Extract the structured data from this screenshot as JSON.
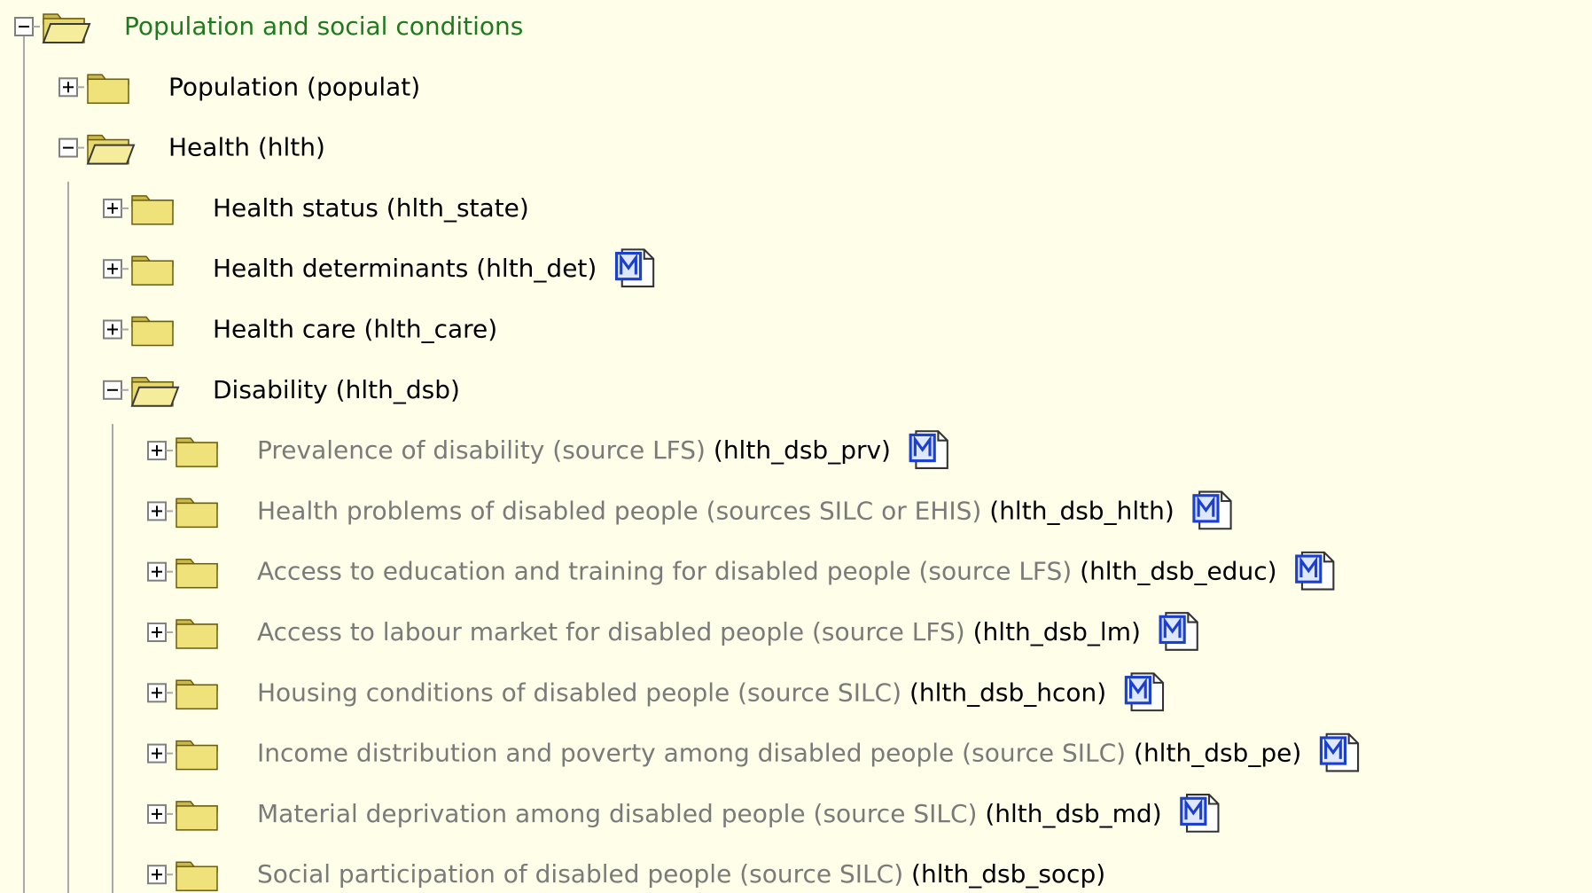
{
  "tree": {
    "nodes": [
      {
        "label": "Population and social conditions",
        "level": 0,
        "expanded": true,
        "metadata": false
      },
      {
        "label": "Population",
        "code": "(populat)",
        "level": 1,
        "expanded": false,
        "metadata": false
      },
      {
        "label": "Health",
        "code": "(hlth)",
        "level": 1,
        "expanded": true,
        "metadata": false
      },
      {
        "label": "Health status",
        "code": "(hlth_state)",
        "level": 2,
        "expanded": false,
        "metadata": false
      },
      {
        "label": "Health determinants",
        "code": "(hlth_det)",
        "level": 2,
        "expanded": false,
        "metadata": true
      },
      {
        "label": "Health care",
        "code": "(hlth_care)",
        "level": 2,
        "expanded": false,
        "metadata": false
      },
      {
        "label": "Disability",
        "code": "(hlth_dsb)",
        "level": 2,
        "expanded": true,
        "metadata": false
      },
      {
        "label": "Prevalence of disability (source LFS)",
        "code": "(hlth_dsb_prv)",
        "level": 3,
        "expanded": false,
        "metadata": true
      },
      {
        "label": "Health problems of disabled people (sources SILC or EHIS)",
        "code": "(hlth_dsb_hlth)",
        "level": 3,
        "expanded": false,
        "metadata": true
      },
      {
        "label": "Access to education and training for disabled people (source LFS)",
        "code": "(hlth_dsb_educ)",
        "level": 3,
        "expanded": false,
        "metadata": true
      },
      {
        "label": "Access to labour market for disabled people (source LFS)",
        "code": "(hlth_dsb_lm)",
        "level": 3,
        "expanded": false,
        "metadata": true
      },
      {
        "label": "Housing conditions of disabled people (source SILC)",
        "code": "(hlth_dsb_hcon)",
        "level": 3,
        "expanded": false,
        "metadata": true
      },
      {
        "label": "Income distribution and poverty among disabled people (source SILC)",
        "code": "(hlth_dsb_pe)",
        "level": 3,
        "expanded": false,
        "metadata": true
      },
      {
        "label": "Material deprivation among disabled people (source SILC)",
        "code": "(hlth_dsb_md)",
        "level": 3,
        "expanded": false,
        "metadata": true
      },
      {
        "label": "Social participation of disabled people (source SILC)",
        "code": "(hlth_dsb_socp)",
        "level": 3,
        "expanded": false,
        "metadata": false
      }
    ]
  }
}
